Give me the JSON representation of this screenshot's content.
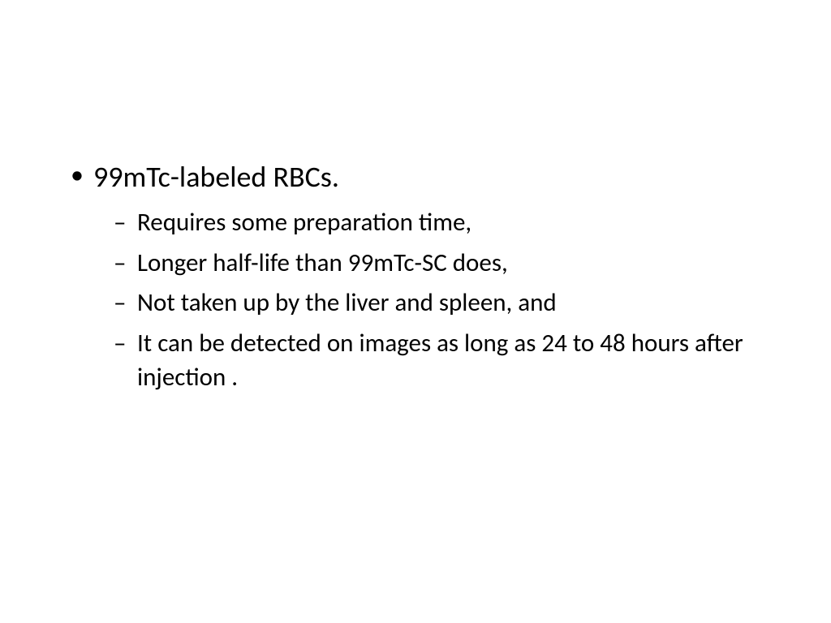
{
  "slide": {
    "background_color": "#ffffff",
    "text_color": "#000000",
    "font_family": "Calibri",
    "bullets": [
      {
        "text": "99mTc-labeled RBCs.",
        "fontsize": 36,
        "sub_bullets": [
          {
            "text": " Requires some preparation time,",
            "fontsize": 31
          },
          {
            "text": "Longer half-life than 99mTc-SC does,",
            "fontsize": 31
          },
          {
            "text": "Not taken up by the liver and spleen, and",
            "fontsize": 31
          },
          {
            "text": "It can be detected on images as long as 24 to 48 hours after injection .",
            "fontsize": 31
          }
        ]
      }
    ],
    "bullet_marker_level1": "•",
    "bullet_marker_level2": "–"
  }
}
